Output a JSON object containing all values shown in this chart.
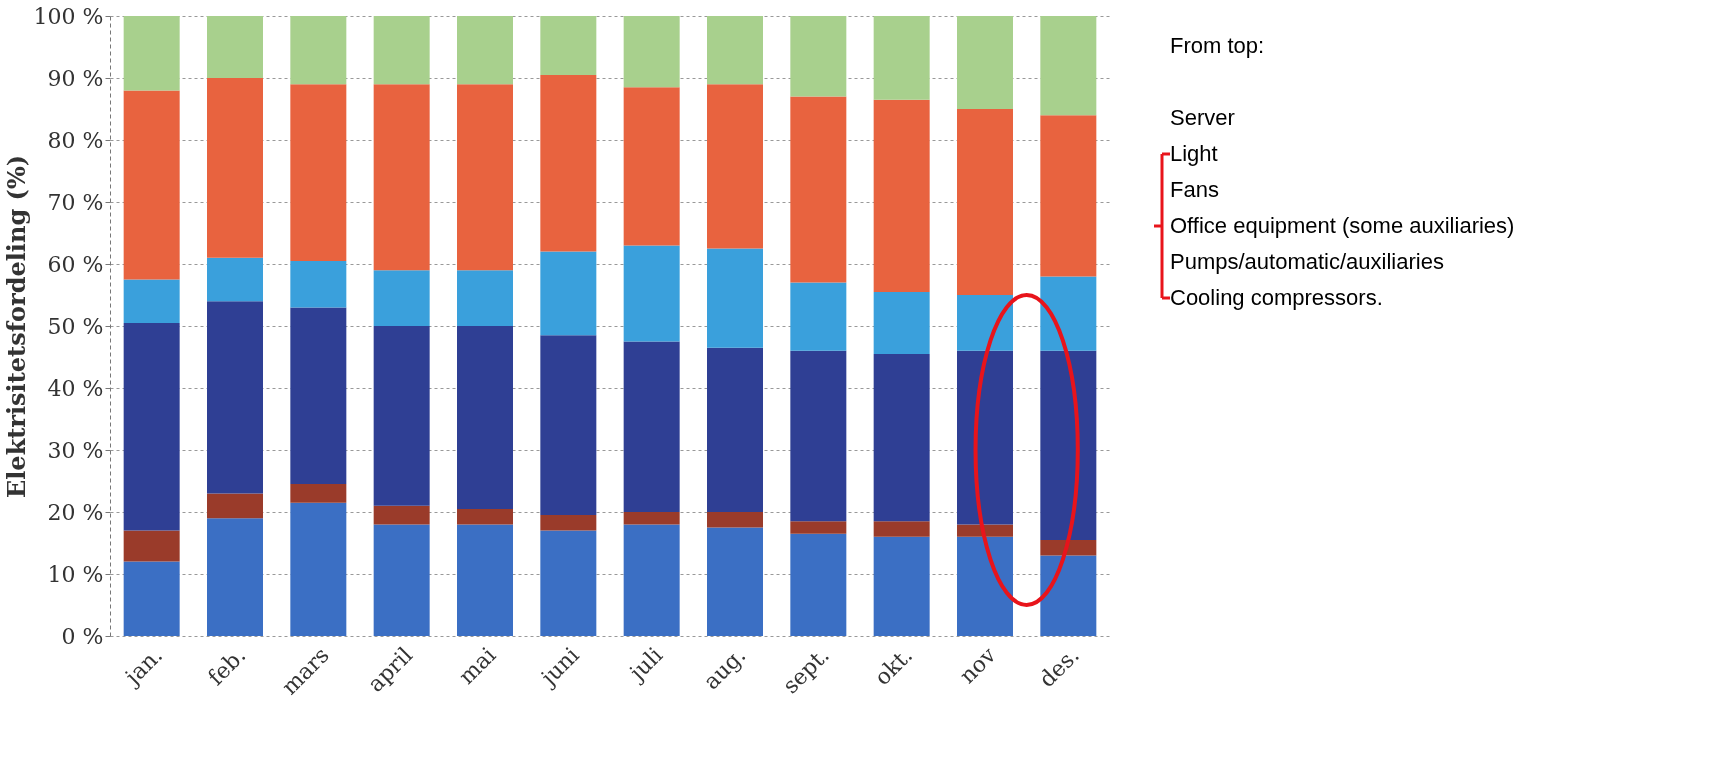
{
  "chart_data": {
    "type": "bar",
    "stacked": true,
    "ylabel": "Elektrisitetsfordeling (%)",
    "categories": [
      "jan.",
      "feb.",
      "mars",
      "april",
      "mai",
      "juni",
      "juli",
      "aug.",
      "sept.",
      "okt.",
      "nov",
      "des."
    ],
    "series": [
      {
        "color": "#3b6fc4",
        "values": [
          12,
          19,
          21.5,
          18,
          18,
          17,
          18,
          17.5,
          16.5,
          16,
          16,
          13
        ]
      },
      {
        "color": "#9a3b2a",
        "values": [
          5,
          4,
          3,
          3,
          2.5,
          2.5,
          2,
          2.5,
          2,
          2.5,
          2,
          2.5
        ]
      },
      {
        "color": "#2f3f94",
        "values": [
          33.5,
          31,
          28.5,
          29,
          29.5,
          29,
          27.5,
          26.5,
          27.5,
          27,
          28,
          30.5
        ]
      },
      {
        "color": "#3aa0dc",
        "values": [
          7,
          7,
          7.5,
          9,
          9,
          13.5,
          15.5,
          16,
          11,
          10,
          9,
          12
        ]
      },
      {
        "color": "#e8633f",
        "values": [
          30.5,
          29,
          28.5,
          30,
          30,
          28.5,
          25.5,
          26.5,
          30,
          31,
          30,
          26
        ]
      },
      {
        "color": "#a8d08d",
        "values": [
          12,
          10,
          11,
          11,
          11,
          9.5,
          11.5,
          11,
          13,
          13.5,
          15,
          16
        ]
      }
    ],
    "ylim": [
      0,
      100
    ],
    "yticks": [
      {
        "value": 0,
        "label": "0 %"
      },
      {
        "value": 10,
        "label": "10 %"
      },
      {
        "value": 20,
        "label": "20 %"
      },
      {
        "value": 30,
        "label": "30 %"
      },
      {
        "value": 40,
        "label": "40 %"
      },
      {
        "value": 50,
        "label": "50 %"
      },
      {
        "value": 60,
        "label": "60 %"
      },
      {
        "value": 70,
        "label": "70 %"
      },
      {
        "value": 80,
        "label": "80 %"
      },
      {
        "value": 90,
        "label": "90 %"
      },
      {
        "value": 100,
        "label": "100 %"
      }
    ],
    "grid": "y",
    "legend": false,
    "annotations": [
      "From top:",
      "Server",
      "Light",
      "Fans",
      "Office equipment (some auxiliaries)",
      "Pumps/automatic/auxiliaries",
      "Cooling compressors."
    ]
  }
}
